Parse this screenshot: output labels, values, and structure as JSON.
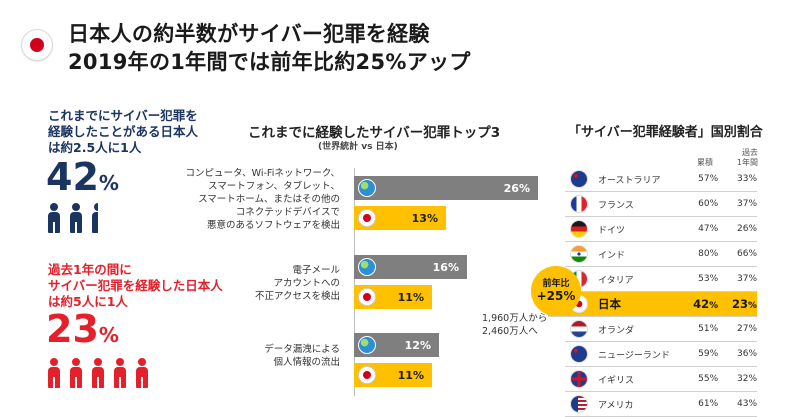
{
  "header": {
    "line1": "日本人の約半数がサイバー犯罪を経験",
    "line2": "2019年の1年間では前年比約25%アップ"
  },
  "left": {
    "stat1": {
      "label_lines": [
        "これまでにサイバー犯罪を",
        "経験したことがある日本人",
        "は約2.5人に1人"
      ],
      "number": "42",
      "unit": "%",
      "icons": 2.5
    },
    "stat2": {
      "label_lines": [
        "過去1年の間に",
        "サイバー犯罪を経験した日本人",
        "は約5人に1人"
      ],
      "number": "23",
      "unit": "%",
      "icons": 5
    }
  },
  "chart": {
    "title": "これまでに経験したサイバー犯罪トップ3",
    "subtitle": "(世界統計 vs 日本)",
    "chart_data": {
      "type": "bar",
      "categories": [
        "コンピュータ、Wi-Fiネットワーク、スマートフォン、タブレット、スマートホーム、またはその他のコネクテッドデバイスで悪意のあるソフトウェアを検出",
        "電子メールアカウントへの不正アクセスを検出",
        "データ漏洩による個人情報の流出"
      ],
      "category_lines": [
        [
          "コンピュータ、Wi-Fiネットワーク、",
          "スマートフォン、タブレット、",
          "スマートホーム、またはその他の",
          "コネクテッドデバイスで",
          "悪意のあるソフトウェアを検出"
        ],
        [
          "電子メール",
          "アカウントへの",
          "不正アクセスを検出"
        ],
        [
          "データ漏洩による",
          "個人情報の流出"
        ]
      ],
      "series": [
        {
          "values": [
            26,
            16,
            12
          ],
          "color": "#7f7f7f",
          "icon": "globe-icon"
        },
        {
          "values": [
            13,
            11,
            11
          ],
          "color": "#ffc000",
          "icon": "japan-flag-icon"
        }
      ],
      "value_labels": [
        [
          "26%",
          "16%",
          "12%"
        ],
        [
          "13%",
          "11%",
          "11%"
        ]
      ],
      "xlim": [
        0,
        30
      ]
    },
    "note_lines": [
      "1,960万人から",
      "2,460万人へ"
    ]
  },
  "table": {
    "title": "「サイバー犯罪経験者」国別割合",
    "col1": "累積",
    "col2_lines": [
      "過去",
      "1年間"
    ],
    "badge": {
      "line1": "前年比",
      "line2": "+25%"
    },
    "rows": [
      {
        "country": "オーストラリア",
        "cumulative": "57%",
        "past_year": "33%",
        "flag": "australia-flag-icon",
        "highlight": false
      },
      {
        "country": "フランス",
        "cumulative": "60%",
        "past_year": "37%",
        "flag": "france-flag-icon",
        "highlight": false
      },
      {
        "country": "ドイツ",
        "cumulative": "47%",
        "past_year": "26%",
        "flag": "germany-flag-icon",
        "highlight": false
      },
      {
        "country": "インド",
        "cumulative": "80%",
        "past_year": "66%",
        "flag": "india-flag-icon",
        "highlight": false
      },
      {
        "country": "イタリア",
        "cumulative": "53%",
        "past_year": "37%",
        "flag": "italy-flag-icon",
        "highlight": false
      },
      {
        "country": "日本",
        "cumulative": "42",
        "cumulative_unit": "%",
        "past_year": "23",
        "past_year_unit": "%",
        "flag": "japan-flag-icon",
        "highlight": true
      },
      {
        "country": "オランダ",
        "cumulative": "51%",
        "past_year": "27%",
        "flag": "netherlands-flag-icon",
        "highlight": false
      },
      {
        "country": "ニュージーランド",
        "cumulative": "59%",
        "past_year": "36%",
        "flag": "new-zealand-flag-icon",
        "highlight": false
      },
      {
        "country": "イギリス",
        "cumulative": "55%",
        "past_year": "32%",
        "flag": "uk-flag-icon",
        "highlight": false
      },
      {
        "country": "アメリカ",
        "cumulative": "61%",
        "past_year": "43%",
        "flag": "usa-flag-icon",
        "highlight": false
      }
    ]
  },
  "colors": {
    "navy": "#1b3561",
    "red": "#e4202a",
    "gold": "#ffc000",
    "gray": "#7f7f7f"
  }
}
